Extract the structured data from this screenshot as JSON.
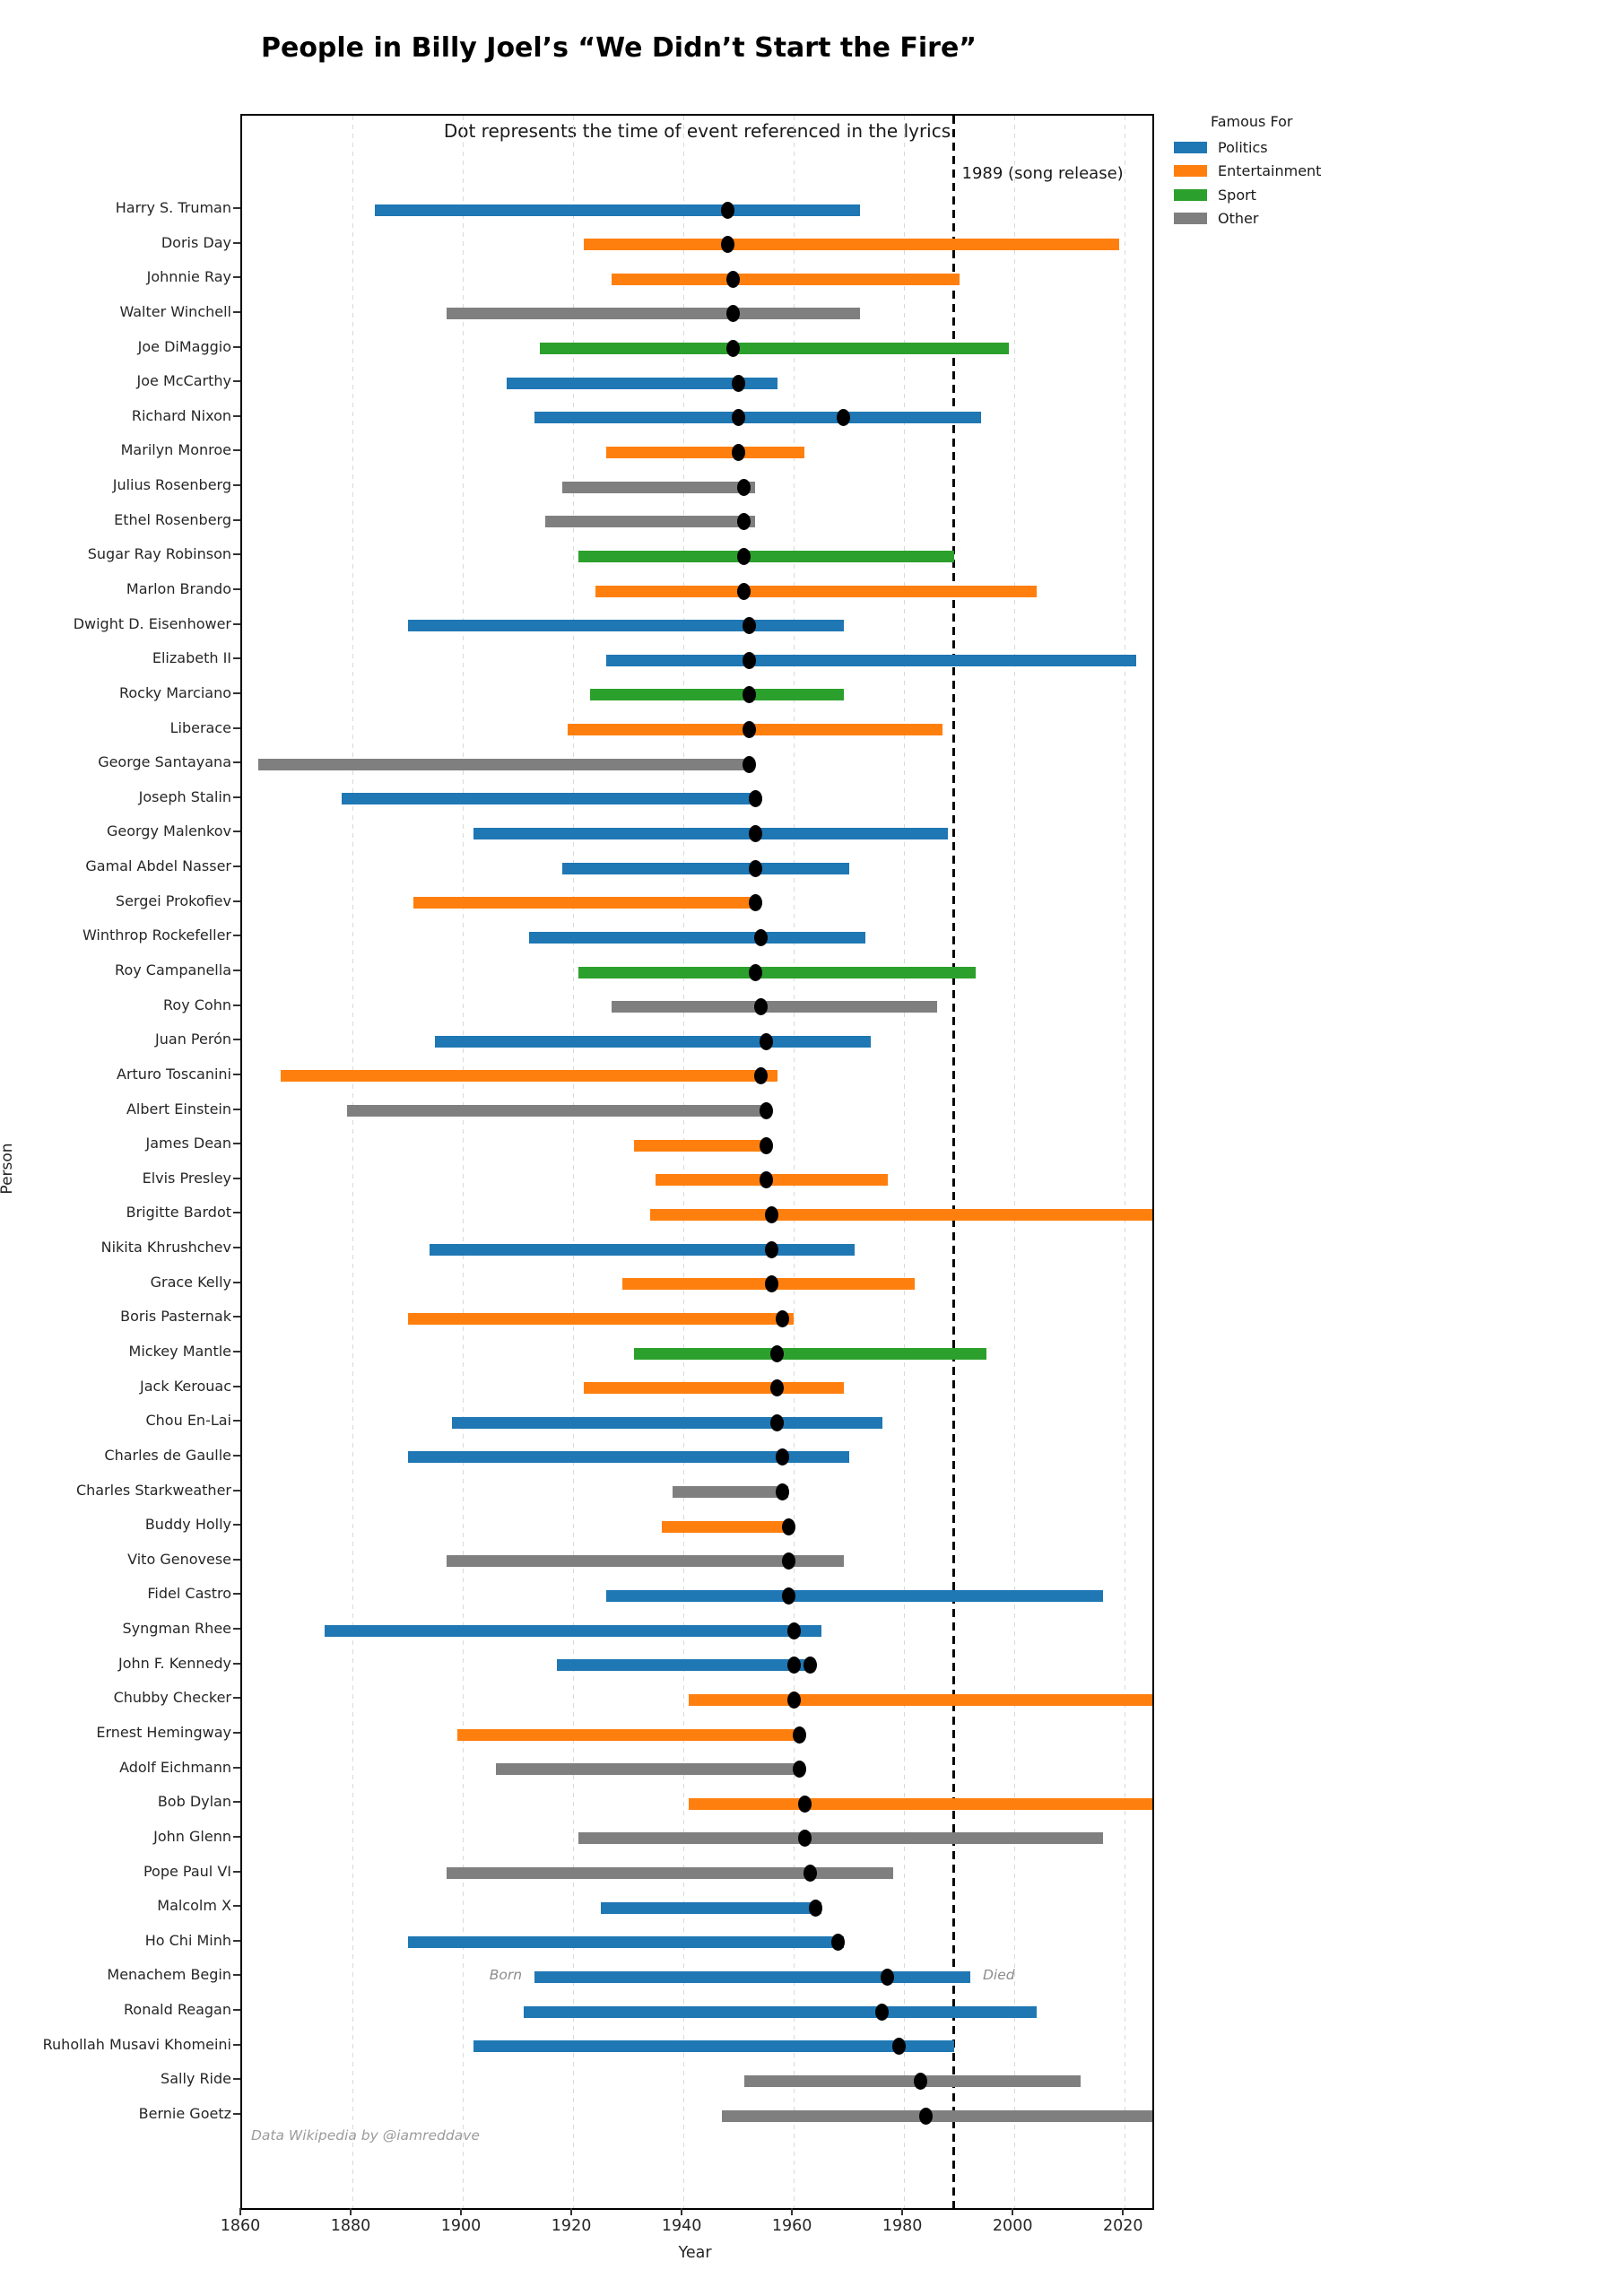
{
  "title": "People in Billy Joel’s “We Didn’t Start the Fire”",
  "subtitle": "Dot represents the time of event referenced in the lyrics",
  "xlabel": "Year",
  "ylabel": "Person",
  "release_line": {
    "year": 1989,
    "label": "1989 (song release)"
  },
  "annotations": {
    "born": "Born",
    "died": "Died",
    "credit": "Data Wikipedia by @iamreddave"
  },
  "legend": {
    "title": "Famous For",
    "entries": [
      {
        "label": "Politics",
        "color": "#1f77b4"
      },
      {
        "label": "Entertainment",
        "color": "#ff7f0e"
      },
      {
        "label": "Sport",
        "color": "#2ca02c"
      },
      {
        "label": "Other",
        "color": "#7f7f7f"
      }
    ]
  },
  "chart_data": {
    "type": "timeline-bar",
    "title": "People in Billy Joel’s “We Didn’t Start the Fire”",
    "xlabel": "Year",
    "ylabel": "Person",
    "xlim": [
      1860,
      2025
    ],
    "x_ticks": [
      1860,
      1880,
      1900,
      1920,
      1940,
      1960,
      1980,
      2000,
      2020
    ],
    "grid": "vertical-dashed",
    "legend_position": "upper-right-outside",
    "category_colors": {
      "Politics": "#1f77b4",
      "Entertainment": "#ff7f0e",
      "Sport": "#2ca02c",
      "Other": "#7f7f7f"
    },
    "dot_color": "#000000",
    "song_release_year": 1989,
    "people": [
      {
        "name": "Harry S. Truman",
        "famous_for": "Politics",
        "born": 1884,
        "died": 1972,
        "events": [
          1948
        ]
      },
      {
        "name": "Doris Day",
        "famous_for": "Entertainment",
        "born": 1922,
        "died": 2019,
        "events": [
          1948
        ]
      },
      {
        "name": "Johnnie Ray",
        "famous_for": "Entertainment",
        "born": 1927,
        "died": 1990,
        "events": [
          1949
        ]
      },
      {
        "name": "Walter Winchell",
        "famous_for": "Other",
        "born": 1897,
        "died": 1972,
        "events": [
          1949
        ]
      },
      {
        "name": "Joe DiMaggio",
        "famous_for": "Sport",
        "born": 1914,
        "died": 1999,
        "events": [
          1949
        ]
      },
      {
        "name": "Joe McCarthy",
        "famous_for": "Politics",
        "born": 1908,
        "died": 1957,
        "events": [
          1950
        ]
      },
      {
        "name": "Richard Nixon",
        "famous_for": "Politics",
        "born": 1913,
        "died": 1994,
        "events": [
          1950,
          1969
        ]
      },
      {
        "name": "Marilyn Monroe",
        "famous_for": "Entertainment",
        "born": 1926,
        "died": 1962,
        "events": [
          1950
        ]
      },
      {
        "name": "Julius Rosenberg",
        "famous_for": "Other",
        "born": 1918,
        "died": 1953,
        "events": [
          1951
        ]
      },
      {
        "name": "Ethel Rosenberg",
        "famous_for": "Other",
        "born": 1915,
        "died": 1953,
        "events": [
          1951
        ]
      },
      {
        "name": "Sugar Ray Robinson",
        "famous_for": "Sport",
        "born": 1921,
        "died": 1989,
        "events": [
          1951
        ]
      },
      {
        "name": "Marlon Brando",
        "famous_for": "Entertainment",
        "born": 1924,
        "died": 2004,
        "events": [
          1951
        ]
      },
      {
        "name": "Dwight D. Eisenhower",
        "famous_for": "Politics",
        "born": 1890,
        "died": 1969,
        "events": [
          1952
        ]
      },
      {
        "name": "Elizabeth II",
        "famous_for": "Politics",
        "born": 1926,
        "died": 2022,
        "events": [
          1952
        ]
      },
      {
        "name": "Rocky Marciano",
        "famous_for": "Sport",
        "born": 1923,
        "died": 1969,
        "events": [
          1952
        ]
      },
      {
        "name": "Liberace",
        "famous_for": "Entertainment",
        "born": 1919,
        "died": 1987,
        "events": [
          1952
        ]
      },
      {
        "name": "George Santayana",
        "famous_for": "Other",
        "born": 1863,
        "died": 1952,
        "events": [
          1952
        ]
      },
      {
        "name": "Joseph Stalin",
        "famous_for": "Politics",
        "born": 1878,
        "died": 1953,
        "events": [
          1953
        ]
      },
      {
        "name": "Georgy Malenkov",
        "famous_for": "Politics",
        "born": 1902,
        "died": 1988,
        "events": [
          1953
        ]
      },
      {
        "name": "Gamal Abdel Nasser",
        "famous_for": "Politics",
        "born": 1918,
        "died": 1970,
        "events": [
          1953
        ]
      },
      {
        "name": "Sergei Prokofiev",
        "famous_for": "Entertainment",
        "born": 1891,
        "died": 1953,
        "events": [
          1953
        ]
      },
      {
        "name": "Winthrop Rockefeller",
        "famous_for": "Politics",
        "born": 1912,
        "died": 1973,
        "events": [
          1954
        ]
      },
      {
        "name": "Roy Campanella",
        "famous_for": "Sport",
        "born": 1921,
        "died": 1993,
        "events": [
          1953
        ]
      },
      {
        "name": "Roy Cohn",
        "famous_for": "Other",
        "born": 1927,
        "died": 1986,
        "events": [
          1954
        ]
      },
      {
        "name": "Juan Perón",
        "famous_for": "Politics",
        "born": 1895,
        "died": 1974,
        "events": [
          1955
        ]
      },
      {
        "name": "Arturo Toscanini",
        "famous_for": "Entertainment",
        "born": 1867,
        "died": 1957,
        "events": [
          1954
        ]
      },
      {
        "name": "Albert Einstein",
        "famous_for": "Other",
        "born": 1879,
        "died": 1955,
        "events": [
          1955
        ]
      },
      {
        "name": "James Dean",
        "famous_for": "Entertainment",
        "born": 1931,
        "died": 1955,
        "events": [
          1955
        ]
      },
      {
        "name": "Elvis Presley",
        "famous_for": "Entertainment",
        "born": 1935,
        "died": 1977,
        "events": [
          1955
        ]
      },
      {
        "name": "Brigitte Bardot",
        "famous_for": "Entertainment",
        "born": 1934,
        "died": null,
        "events": [
          1956
        ]
      },
      {
        "name": "Nikita Khrushchev",
        "famous_for": "Politics",
        "born": 1894,
        "died": 1971,
        "events": [
          1956
        ]
      },
      {
        "name": "Grace Kelly",
        "famous_for": "Entertainment",
        "born": 1929,
        "died": 1982,
        "events": [
          1956
        ]
      },
      {
        "name": "Boris Pasternak",
        "famous_for": "Entertainment",
        "born": 1890,
        "died": 1960,
        "events": [
          1958
        ]
      },
      {
        "name": "Mickey Mantle",
        "famous_for": "Sport",
        "born": 1931,
        "died": 1995,
        "events": [
          1957
        ]
      },
      {
        "name": "Jack Kerouac",
        "famous_for": "Entertainment",
        "born": 1922,
        "died": 1969,
        "events": [
          1957
        ]
      },
      {
        "name": "Chou En-Lai",
        "famous_for": "Politics",
        "born": 1898,
        "died": 1976,
        "events": [
          1957
        ]
      },
      {
        "name": "Charles de Gaulle",
        "famous_for": "Politics",
        "born": 1890,
        "died": 1970,
        "events": [
          1958
        ]
      },
      {
        "name": "Charles Starkweather",
        "famous_for": "Other",
        "born": 1938,
        "died": 1959,
        "events": [
          1958
        ]
      },
      {
        "name": "Buddy Holly",
        "famous_for": "Entertainment",
        "born": 1936,
        "died": 1959,
        "events": [
          1959
        ]
      },
      {
        "name": "Vito Genovese",
        "famous_for": "Other",
        "born": 1897,
        "died": 1969,
        "events": [
          1959
        ]
      },
      {
        "name": "Fidel Castro",
        "famous_for": "Politics",
        "born": 1926,
        "died": 2016,
        "events": [
          1959
        ]
      },
      {
        "name": "Syngman Rhee",
        "famous_for": "Politics",
        "born": 1875,
        "died": 1965,
        "events": [
          1960
        ]
      },
      {
        "name": "John F. Kennedy",
        "famous_for": "Politics",
        "born": 1917,
        "died": 1963,
        "events": [
          1960,
          1963
        ]
      },
      {
        "name": "Chubby Checker",
        "famous_for": "Entertainment",
        "born": 1941,
        "died": null,
        "events": [
          1960
        ]
      },
      {
        "name": "Ernest Hemingway",
        "famous_for": "Entertainment",
        "born": 1899,
        "died": 1961,
        "events": [
          1961
        ]
      },
      {
        "name": "Adolf Eichmann",
        "famous_for": "Other",
        "born": 1906,
        "died": 1962,
        "events": [
          1961
        ]
      },
      {
        "name": "Bob Dylan",
        "famous_for": "Entertainment",
        "born": 1941,
        "died": null,
        "events": [
          1962
        ]
      },
      {
        "name": "John Glenn",
        "famous_for": "Other",
        "born": 1921,
        "died": 2016,
        "events": [
          1962
        ]
      },
      {
        "name": "Pope Paul VI",
        "famous_for": "Other",
        "born": 1897,
        "died": 1978,
        "events": [
          1963
        ]
      },
      {
        "name": "Malcolm X",
        "famous_for": "Politics",
        "born": 1925,
        "died": 1965,
        "events": [
          1964
        ]
      },
      {
        "name": "Ho Chi Minh",
        "famous_for": "Politics",
        "born": 1890,
        "died": 1969,
        "events": [
          1968
        ]
      },
      {
        "name": "Menachem Begin",
        "famous_for": "Politics",
        "born": 1913,
        "died": 1992,
        "events": [
          1977
        ],
        "annotated": true
      },
      {
        "name": "Ronald Reagan",
        "famous_for": "Politics",
        "born": 1911,
        "died": 2004,
        "events": [
          1976
        ]
      },
      {
        "name": "Ruhollah Musavi Khomeini",
        "famous_for": "Politics",
        "born": 1902,
        "died": 1989,
        "events": [
          1979
        ]
      },
      {
        "name": "Sally Ride",
        "famous_for": "Other",
        "born": 1951,
        "died": 2012,
        "events": [
          1983
        ]
      },
      {
        "name": "Bernie Goetz",
        "famous_for": "Other",
        "born": 1947,
        "died": null,
        "events": [
          1984
        ]
      }
    ]
  }
}
